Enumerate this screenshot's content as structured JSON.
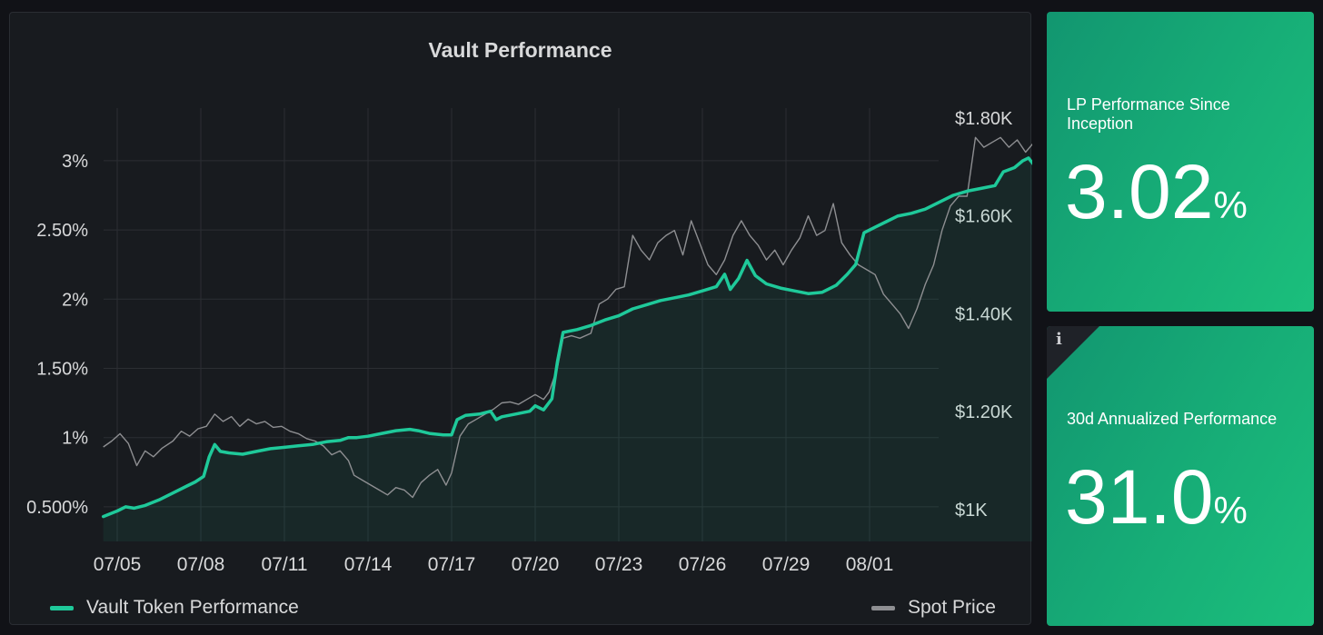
{
  "panel": {
    "title": "Vault Performance"
  },
  "chart_data": {
    "type": "line",
    "title": "Vault Performance",
    "x_tick_labels": [
      "07/05",
      "07/08",
      "07/11",
      "07/14",
      "07/17",
      "07/20",
      "07/23",
      "07/26",
      "07/29",
      "08/01"
    ],
    "x_range_days": [
      0,
      30
    ],
    "y_left_ticks": [
      {
        "v": 0.5,
        "label": "0.500%"
      },
      {
        "v": 1,
        "label": "1%"
      },
      {
        "v": 1.5,
        "label": "1.50%"
      },
      {
        "v": 2,
        "label": "2%"
      },
      {
        "v": 2.5,
        "label": "2.50%"
      },
      {
        "v": 3,
        "label": "3%"
      }
    ],
    "y_left_range": [
      0.25,
      3.38
    ],
    "y_right_ticks": [
      {
        "v": 1000,
        "label": "$1K"
      },
      {
        "v": 1200,
        "label": "$1.20K"
      },
      {
        "v": 1400,
        "label": "$1.40K"
      },
      {
        "v": 1600,
        "label": "$1.60K"
      },
      {
        "v": 1800,
        "label": "$1.80K"
      }
    ],
    "y_right_range": [
      935,
      1820
    ],
    "grid": true,
    "legend_placement": "bottom",
    "series": [
      {
        "name": "Vault Token Performance",
        "axis": "left",
        "color": "#1fc99a",
        "fill": true,
        "points": [
          [
            -0.5,
            0.43
          ],
          [
            0,
            0.47
          ],
          [
            0.3,
            0.5
          ],
          [
            0.6,
            0.49
          ],
          [
            1,
            0.51
          ],
          [
            1.5,
            0.55
          ],
          [
            2,
            0.6
          ],
          [
            2.5,
            0.65
          ],
          [
            2.8,
            0.68
          ],
          [
            3.1,
            0.72
          ],
          [
            3.3,
            0.86
          ],
          [
            3.5,
            0.95
          ],
          [
            3.7,
            0.9
          ],
          [
            4,
            0.89
          ],
          [
            4.5,
            0.88
          ],
          [
            5,
            0.9
          ],
          [
            5.5,
            0.92
          ],
          [
            6,
            0.93
          ],
          [
            6.5,
            0.94
          ],
          [
            7,
            0.95
          ],
          [
            7.5,
            0.97
          ],
          [
            8,
            0.98
          ],
          [
            8.3,
            1.0
          ],
          [
            8.6,
            1.0
          ],
          [
            9,
            1.01
          ],
          [
            9.5,
            1.03
          ],
          [
            10,
            1.05
          ],
          [
            10.5,
            1.06
          ],
          [
            10.8,
            1.05
          ],
          [
            11.2,
            1.03
          ],
          [
            11.7,
            1.02
          ],
          [
            12,
            1.02
          ],
          [
            12.2,
            1.13
          ],
          [
            12.5,
            1.16
          ],
          [
            13,
            1.17
          ],
          [
            13.4,
            1.19
          ],
          [
            13.6,
            1.13
          ],
          [
            13.8,
            1.15
          ],
          [
            14.3,
            1.17
          ],
          [
            14.8,
            1.19
          ],
          [
            15,
            1.23
          ],
          [
            15.3,
            1.2
          ],
          [
            15.6,
            1.28
          ],
          [
            15.8,
            1.55
          ],
          [
            16,
            1.76
          ],
          [
            16.5,
            1.78
          ],
          [
            17,
            1.81
          ],
          [
            17.5,
            1.85
          ],
          [
            18,
            1.88
          ],
          [
            18.5,
            1.93
          ],
          [
            19,
            1.96
          ],
          [
            19.5,
            1.99
          ],
          [
            20,
            2.01
          ],
          [
            20.5,
            2.03
          ],
          [
            21,
            2.06
          ],
          [
            21.5,
            2.09
          ],
          [
            21.8,
            2.18
          ],
          [
            22,
            2.07
          ],
          [
            22.3,
            2.15
          ],
          [
            22.6,
            2.28
          ],
          [
            22.9,
            2.17
          ],
          [
            23.3,
            2.11
          ],
          [
            23.8,
            2.08
          ],
          [
            24.3,
            2.06
          ],
          [
            24.8,
            2.04
          ],
          [
            25.3,
            2.05
          ],
          [
            25.8,
            2.1
          ],
          [
            26.2,
            2.18
          ],
          [
            26.5,
            2.25
          ],
          [
            26.8,
            2.48
          ],
          [
            27.2,
            2.52
          ],
          [
            27.6,
            2.56
          ],
          [
            28,
            2.6
          ],
          [
            28.5,
            2.62
          ],
          [
            29,
            2.65
          ],
          [
            29.5,
            2.7
          ],
          [
            30,
            2.75
          ],
          [
            30.5,
            2.78
          ],
          [
            31,
            2.8
          ],
          [
            31.5,
            2.82
          ],
          [
            31.8,
            2.92
          ],
          [
            32.2,
            2.95
          ],
          [
            32.5,
            3.0
          ],
          [
            32.7,
            3.02
          ],
          [
            32.9,
            2.97
          ],
          [
            33.3,
            3.0
          ],
          [
            33.7,
            3.0
          ],
          [
            34,
            3.01
          ],
          [
            34.3,
            3.02
          ],
          [
            34.6,
            3.01
          ],
          [
            34.9,
            3.02
          ],
          [
            35.2,
            3.02
          ],
          [
            35.4,
            3.01
          ]
        ]
      },
      {
        "name": "Spot Price",
        "axis": "right",
        "color": "#8e8f92",
        "fill": false,
        "points": [
          [
            -0.5,
            1128
          ],
          [
            -0.2,
            1140
          ],
          [
            0.1,
            1155
          ],
          [
            0.4,
            1135
          ],
          [
            0.7,
            1090
          ],
          [
            1,
            1120
          ],
          [
            1.3,
            1108
          ],
          [
            1.6,
            1125
          ],
          [
            2,
            1140
          ],
          [
            2.3,
            1160
          ],
          [
            2.6,
            1150
          ],
          [
            2.9,
            1165
          ],
          [
            3.2,
            1170
          ],
          [
            3.5,
            1195
          ],
          [
            3.8,
            1180
          ],
          [
            4.1,
            1190
          ],
          [
            4.4,
            1170
          ],
          [
            4.7,
            1185
          ],
          [
            5,
            1175
          ],
          [
            5.3,
            1180
          ],
          [
            5.6,
            1168
          ],
          [
            5.9,
            1170
          ],
          [
            6.2,
            1160
          ],
          [
            6.5,
            1155
          ],
          [
            6.8,
            1145
          ],
          [
            7.1,
            1140
          ],
          [
            7.4,
            1130
          ],
          [
            7.7,
            1112
          ],
          [
            8,
            1120
          ],
          [
            8.3,
            1100
          ],
          [
            8.5,
            1070
          ],
          [
            8.8,
            1060
          ],
          [
            9.1,
            1050
          ],
          [
            9.4,
            1040
          ],
          [
            9.7,
            1030
          ],
          [
            10,
            1045
          ],
          [
            10.3,
            1040
          ],
          [
            10.6,
            1025
          ],
          [
            10.9,
            1055
          ],
          [
            11.2,
            1070
          ],
          [
            11.5,
            1082
          ],
          [
            11.8,
            1050
          ],
          [
            12,
            1075
          ],
          [
            12.3,
            1150
          ],
          [
            12.6,
            1175
          ],
          [
            12.9,
            1185
          ],
          [
            13.2,
            1195
          ],
          [
            13.5,
            1205
          ],
          [
            13.8,
            1218
          ],
          [
            14.1,
            1220
          ],
          [
            14.4,
            1215
          ],
          [
            14.7,
            1225
          ],
          [
            15,
            1235
          ],
          [
            15.3,
            1225
          ],
          [
            15.5,
            1240
          ],
          [
            15.8,
            1290
          ],
          [
            16,
            1350
          ],
          [
            16.3,
            1355
          ],
          [
            16.6,
            1350
          ],
          [
            17,
            1360
          ],
          [
            17.3,
            1420
          ],
          [
            17.6,
            1430
          ],
          [
            17.9,
            1450
          ],
          [
            18.2,
            1455
          ],
          [
            18.5,
            1560
          ],
          [
            18.8,
            1530
          ],
          [
            19.1,
            1510
          ],
          [
            19.4,
            1545
          ],
          [
            19.7,
            1560
          ],
          [
            20,
            1570
          ],
          [
            20.3,
            1520
          ],
          [
            20.6,
            1590
          ],
          [
            20.9,
            1545
          ],
          [
            21.2,
            1500
          ],
          [
            21.5,
            1480
          ],
          [
            21.8,
            1510
          ],
          [
            22.1,
            1560
          ],
          [
            22.4,
            1590
          ],
          [
            22.7,
            1560
          ],
          [
            23,
            1540
          ],
          [
            23.3,
            1510
          ],
          [
            23.6,
            1530
          ],
          [
            23.9,
            1500
          ],
          [
            24.2,
            1530
          ],
          [
            24.5,
            1555
          ],
          [
            24.8,
            1600
          ],
          [
            25.1,
            1560
          ],
          [
            25.4,
            1570
          ],
          [
            25.7,
            1625
          ],
          [
            26,
            1545
          ],
          [
            26.3,
            1520
          ],
          [
            26.6,
            1500
          ],
          [
            26.9,
            1490
          ],
          [
            27.2,
            1480
          ],
          [
            27.5,
            1440
          ],
          [
            27.8,
            1420
          ],
          [
            28.1,
            1400
          ],
          [
            28.4,
            1370
          ],
          [
            28.7,
            1410
          ],
          [
            29,
            1460
          ],
          [
            29.3,
            1500
          ],
          [
            29.6,
            1570
          ],
          [
            29.9,
            1620
          ],
          [
            30.2,
            1640
          ],
          [
            30.5,
            1640
          ],
          [
            30.8,
            1760
          ],
          [
            31.1,
            1740
          ],
          [
            31.4,
            1750
          ],
          [
            31.7,
            1760
          ],
          [
            32,
            1740
          ],
          [
            32.3,
            1755
          ],
          [
            32.6,
            1730
          ],
          [
            32.9,
            1750
          ],
          [
            33.2,
            1740
          ],
          [
            33.5,
            1735
          ],
          [
            33.8,
            1725
          ],
          [
            34.1,
            1740
          ],
          [
            34.4,
            1720
          ],
          [
            34.7,
            1700
          ],
          [
            35,
            1650
          ],
          [
            35.3,
            1640
          ],
          [
            35.6,
            1620
          ],
          [
            35.9,
            1600
          ],
          [
            36.2,
            1650
          ],
          [
            36.5,
            1680
          ],
          [
            36.8,
            1700
          ]
        ]
      }
    ]
  },
  "legend": {
    "vault_label": "Vault Token Performance",
    "spot_label": "Spot Price",
    "vault_color": "#1fc99a",
    "spot_color": "#8e8f92"
  },
  "stats": [
    {
      "label": "LP Performance Since Inception",
      "value": "3.02",
      "unit": "%"
    },
    {
      "label": "30d Annualized Performance",
      "value": "31.0",
      "unit": "%",
      "info_icon": "info-icon"
    }
  ]
}
